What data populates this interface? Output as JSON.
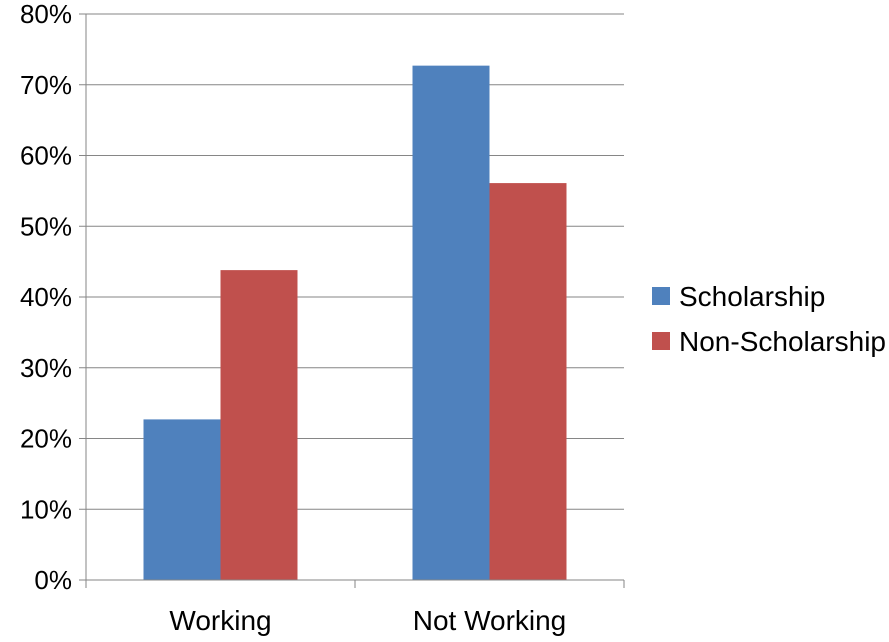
{
  "chart_data": {
    "type": "bar",
    "title": "",
    "xlabel": "",
    "ylabel": "",
    "categories": [
      "Working",
      "Not Working"
    ],
    "series": [
      {
        "name": "Scholarship",
        "values": [
          22.7,
          72.7
        ],
        "color": "#4F81BD"
      },
      {
        "name": "Non-Scholarship",
        "values": [
          43.8,
          56.1
        ],
        "color": "#C0504D"
      }
    ],
    "ylim": [
      0,
      80
    ],
    "yticks": [
      "0%",
      "10%",
      "20%",
      "30%",
      "40%",
      "50%",
      "60%",
      "70%",
      "80%"
    ],
    "ytick_values": [
      0,
      10,
      20,
      30,
      40,
      50,
      60,
      70,
      80
    ],
    "grid": true,
    "legend_position": "right",
    "gridline_color": "#868686",
    "axis_color": "#868686"
  }
}
